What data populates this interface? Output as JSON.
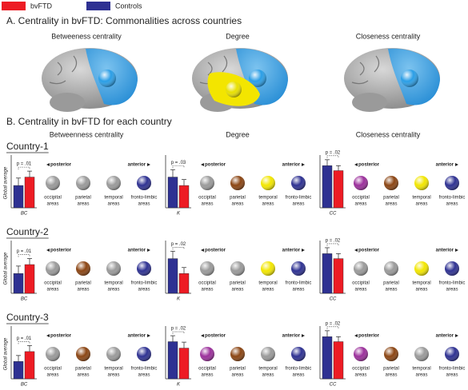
{
  "section_a_title": "A. Centrality in bvFTD: Commonalities across countries",
  "section_b_title": "B. Centrality in bvFTD for each country",
  "section_a_measures": [
    "Betweeness centrality",
    "Degree",
    "Closeness centrality"
  ],
  "section_b_measures": [
    "Betweenness centrality",
    "Degree",
    "Closeness centrality"
  ],
  "countries": [
    "Country-1",
    "Country-2",
    "Country-3"
  ],
  "posterior_label": "posterior",
  "anterior_label": "anterior",
  "area_labels": [
    [
      "occipital",
      "areas"
    ],
    [
      "parietal",
      "areas"
    ],
    [
      "temporal",
      "areas"
    ],
    [
      "fronto-limbic",
      "areas"
    ]
  ],
  "node_colors": [
    [
      "#9a9a9a",
      "#9a9a9a",
      "#9a9a9a",
      "#2e3192"
    ],
    [
      "#9a9a9a",
      "#8b4513",
      "#f2e600",
      "#2e3192"
    ],
    [
      "#9b2f9b",
      "#8b4513",
      "#f2e600",
      "#2e3192"
    ],
    [
      "#9a9a9a",
      "#8b4513",
      "#9a9a9a",
      "#2e3192"
    ],
    [
      "#9a9a9a",
      "#9a9a9a",
      "#f2e600",
      "#2e3192"
    ],
    [
      "#9a9a9a",
      "#9a9a9a",
      "#f2e600",
      "#2e3192"
    ],
    [
      "#9a9a9a",
      "#8b4513",
      "#9a9a9a",
      "#2e3192"
    ],
    [
      "#9b2f9b",
      "#8b4513",
      "#9a9a9a",
      "#2e3192"
    ],
    [
      "#9b2f9b",
      "#8b4513",
      "#9a9a9a",
      "#2e3192"
    ]
  ],
  "chart_data": [
    {
      "type": "bar",
      "categories": [
        "BC"
      ],
      "ylabel": "Global average",
      "annotation": "p = .01",
      "ylim": [
        0,
        1
      ],
      "series": [
        {
          "name": "Controls",
          "color": "#2e3192",
          "values": [
            0.45
          ],
          "errors": [
            0.15
          ]
        },
        {
          "name": "bvFTD",
          "color": "#ed1c24",
          "values": [
            0.62
          ],
          "errors": [
            0.12
          ]
        }
      ]
    },
    {
      "type": "bar",
      "categories": [
        "K"
      ],
      "annotation": "p = .03",
      "ylim": [
        0,
        1
      ],
      "series": [
        {
          "name": "Controls",
          "color": "#2e3192",
          "values": [
            0.62
          ],
          "errors": [
            0.15
          ]
        },
        {
          "name": "bvFTD",
          "color": "#ed1c24",
          "values": [
            0.45
          ],
          "errors": [
            0.12
          ]
        }
      ]
    },
    {
      "type": "bar",
      "categories": [
        "CC"
      ],
      "annotation": "p = .02",
      "ylim": [
        0,
        1
      ],
      "series": [
        {
          "name": "Controls",
          "color": "#2e3192",
          "values": [
            0.85
          ],
          "errors": [
            0.12
          ]
        },
        {
          "name": "bvFTD",
          "color": "#ed1c24",
          "values": [
            0.75
          ],
          "errors": [
            0.1
          ]
        }
      ]
    },
    {
      "type": "bar",
      "categories": [
        "BC"
      ],
      "ylabel": "Global average",
      "annotation": "p = .01",
      "ylim": [
        0,
        1
      ],
      "series": [
        {
          "name": "Controls",
          "color": "#2e3192",
          "values": [
            0.4
          ],
          "errors": [
            0.15
          ]
        },
        {
          "name": "bvFTD",
          "color": "#ed1c24",
          "values": [
            0.58
          ],
          "errors": [
            0.12
          ]
        }
      ]
    },
    {
      "type": "bar",
      "categories": [
        "K"
      ],
      "annotation": "p = .02",
      "ylim": [
        0,
        1
      ],
      "series": [
        {
          "name": "Controls",
          "color": "#2e3192",
          "values": [
            0.7
          ],
          "errors": [
            0.15
          ]
        },
        {
          "name": "bvFTD",
          "color": "#ed1c24",
          "values": [
            0.4
          ],
          "errors": [
            0.12
          ]
        }
      ]
    },
    {
      "type": "bar",
      "categories": [
        "CC"
      ],
      "annotation": "p = .02",
      "ylim": [
        0,
        1
      ],
      "series": [
        {
          "name": "Controls",
          "color": "#2e3192",
          "values": [
            0.8
          ],
          "errors": [
            0.12
          ]
        },
        {
          "name": "bvFTD",
          "color": "#ed1c24",
          "values": [
            0.7
          ],
          "errors": [
            0.1
          ]
        }
      ]
    },
    {
      "type": "bar",
      "categories": [
        "BC"
      ],
      "ylabel": "Global average",
      "annotation": "p = .01",
      "ylim": [
        0,
        1
      ],
      "series": [
        {
          "name": "Controls",
          "color": "#2e3192",
          "values": [
            0.35
          ],
          "errors": [
            0.12
          ]
        },
        {
          "name": "bvFTD",
          "color": "#ed1c24",
          "values": [
            0.55
          ],
          "errors": [
            0.12
          ]
        }
      ]
    },
    {
      "type": "bar",
      "categories": [
        "K"
      ],
      "annotation": "p = .02",
      "ylim": [
        0,
        1
      ],
      "series": [
        {
          "name": "Controls",
          "color": "#2e3192",
          "values": [
            0.75
          ],
          "errors": [
            0.12
          ]
        },
        {
          "name": "bvFTD",
          "color": "#ed1c24",
          "values": [
            0.62
          ],
          "errors": [
            0.12
          ]
        }
      ]
    },
    {
      "type": "bar",
      "categories": [
        "CC"
      ],
      "annotation": "p = .02",
      "ylim": [
        0,
        1
      ],
      "series": [
        {
          "name": "Controls",
          "color": "#2e3192",
          "values": [
            0.85
          ],
          "errors": [
            0.12
          ]
        },
        {
          "name": "bvFTD",
          "color": "#ed1c24",
          "values": [
            0.75
          ],
          "errors": [
            0.1
          ]
        }
      ]
    }
  ]
}
